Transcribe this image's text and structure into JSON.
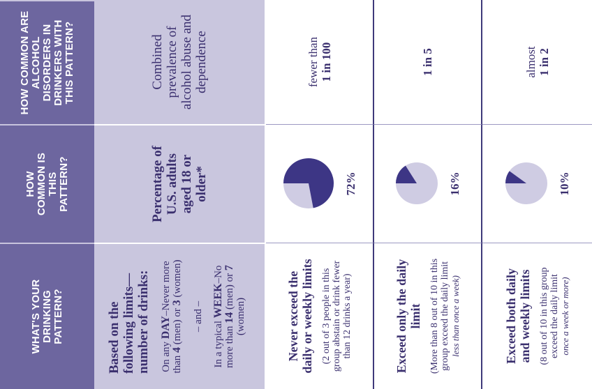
{
  "headers": {
    "pattern": "WHAT'S YOUR DRINKING PATTERN?",
    "how_common": "HOW COMMON IS THIS PATTERN?",
    "disorders": "HOW COMMON ARE ALCOHOL DISORDERS IN DRINKERS WITH THIS PATTERN?"
  },
  "criteria": {
    "title": "Based on the following limits—number of drinks:",
    "day_prefix": "On any ",
    "day_word": "DAY",
    "day_mid": "–Never more than ",
    "day_men": "4",
    "day_or": " (men) or ",
    "day_women": "3",
    "day_end": " (women)",
    "and": "– and –",
    "week_prefix": "In a typical ",
    "week_word": "WEEK",
    "week_mid": "–No more than ",
    "week_men": "14",
    "week_or": " (men) or ",
    "week_women": "7",
    "week_end": " (women)"
  },
  "subheaders": {
    "how_common": "Percentage of U.S. adults aged 18 or older*",
    "disorders": "Combined prevalence of alcohol abuse and dependence"
  },
  "rows": [
    {
      "title": "Never exceed the daily or weekly limits",
      "desc": "(2 out of 3 people in this group abstain or drink fewer than 12 drinks a year)",
      "desc_italic": "",
      "percent_label": "72%",
      "prevalence_prefix": "fewer than",
      "prevalence_value": "1 in 100"
    },
    {
      "title": "Exceed only the daily limit",
      "desc": "(More than 8 out of 10 in this group exceed the daily limit",
      "desc_italic": "less than once a week)",
      "percent_label": "16%",
      "prevalence_prefix": "",
      "prevalence_value": "1 in 5"
    },
    {
      "title": "Exceed both daily and weekly limits",
      "desc": "(8 out of 10 in this group exceed the daily limit",
      "desc_italic": "once a week or more)",
      "percent_label": "10%",
      "prevalence_prefix": "almost",
      "prevalence_value": "1 in 2"
    }
  ],
  "chart_data": {
    "type": "pie",
    "values": [
      72,
      16,
      10
    ],
    "labels": [
      "72%",
      "16%",
      "10%"
    ]
  },
  "colors": {
    "header_bg": "#6d669f",
    "subheader_bg": "#c9c6de",
    "pie_fill": "#3d3685",
    "pie_bg": "#cfcce3",
    "text": "#3a2f6e"
  }
}
